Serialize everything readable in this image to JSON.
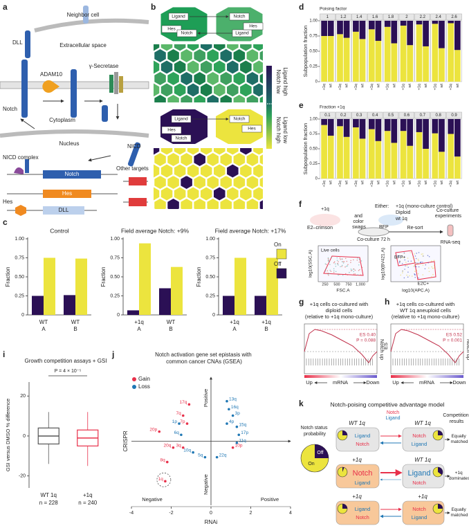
{
  "panel_labels": [
    "a",
    "b",
    "c",
    "d",
    "e",
    "f",
    "g",
    "h",
    "i",
    "j",
    "k"
  ],
  "a": {
    "labels": [
      "Neighbor cell",
      "DLL",
      "Extracellular space",
      "ADAM10",
      "γ-Secretase",
      "Notch",
      "Cytoplasm",
      "Nucleus",
      "NICD",
      "NICD complex",
      "Notch",
      "Hes",
      "Other targets",
      "Hes",
      "DLL"
    ]
  },
  "b": {
    "top": [
      "Ligand",
      "Notch",
      "Hes",
      "Notch",
      "Ligand",
      "Hes"
    ],
    "bottom": [
      "Ligand",
      "Notch",
      "Hes",
      "Notch",
      "Hes"
    ],
    "colorbar": [
      "Notch low",
      "Ligand high",
      "Notch high",
      "Ligand low"
    ]
  },
  "c": {
    "type": "bar",
    "ylabel": "Fraction",
    "ylim": [
      0,
      1
    ],
    "yticks": [
      0,
      0.25,
      {
        "value": 0.5,
        "label": "0.50"
      },
      0.75,
      {
        "value": 1,
        "label": "1.00"
      }
    ],
    "series": [
      {
        "name": "On",
        "color": "#ece43e"
      },
      {
        "name": "Off",
        "color": "#2b1055"
      }
    ],
    "charts": [
      {
        "title": "Control",
        "categories": [
          "WT",
          "WT"
        ],
        "sublabels": [
          "A",
          "B"
        ],
        "values": [
          [
            0.75,
            0.74
          ],
          [
            0.25,
            0.26
          ]
        ]
      },
      {
        "title": "Field average Notch: +9%",
        "categories": [
          "+1q",
          "WT"
        ],
        "sublabels": [
          "A",
          "B"
        ],
        "values": [
          [
            0.94,
            0.63
          ],
          [
            0.06,
            0.35
          ]
        ]
      },
      {
        "title": "Field average Notch: +17%",
        "categories": [
          "+1q",
          "+1q"
        ],
        "sublabels": [
          "A",
          "B"
        ],
        "values": [
          [
            0.75,
            0.75
          ],
          [
            0.25,
            0.25
          ]
        ]
      }
    ]
  },
  "d": {
    "type": "stacked_bar",
    "ylabel": "Subpopulation fraction",
    "facet_title": "Poising factor",
    "facets": [
      1,
      1.2,
      1.4,
      1.6,
      1.8,
      2,
      2.2,
      2.4,
      2.6
    ],
    "categories": [
      "+1q",
      "wt"
    ],
    "colors": [
      "#ece43e",
      "#2b1055"
    ],
    "ylim": [
      0,
      1
    ],
    "yticks": [
      0,
      0.25,
      {
        "value": 0.5,
        "label": "0.50"
      },
      0.75,
      {
        "value": 1,
        "label": "1.00"
      }
    ],
    "lower": [
      [
        0.75,
        0.75
      ],
      [
        0.78,
        0.72
      ],
      [
        0.82,
        0.7
      ],
      [
        0.86,
        0.67
      ],
      [
        0.9,
        0.63
      ],
      [
        0.92,
        0.6
      ],
      [
        0.94,
        0.58
      ],
      [
        0.95,
        0.55
      ],
      [
        0.96,
        0.52
      ]
    ],
    "upper": [
      [
        0.25,
        0.25
      ],
      [
        0.22,
        0.28
      ],
      [
        0.18,
        0.3
      ],
      [
        0.14,
        0.33
      ],
      [
        0.1,
        0.37
      ],
      [
        0.08,
        0.4
      ],
      [
        0.06,
        0.42
      ],
      [
        0.05,
        0.45
      ],
      [
        0.04,
        0.48
      ]
    ]
  },
  "e": {
    "type": "stacked_bar",
    "ylabel": "Subpopulation fraction",
    "facet_title": "Fraction +1q",
    "facets": [
      0.1,
      0.2,
      0.3,
      0.4,
      0.5,
      0.6,
      0.7,
      0.8,
      0.9
    ],
    "categories": [
      "+1q",
      "wt"
    ],
    "colors": [
      "#ece43e",
      "#2b1055"
    ],
    "ylim": [
      0,
      1
    ],
    "yticks": [
      0,
      0.25,
      {
        "value": 0.5,
        "label": "0.50"
      },
      0.75,
      {
        "value": 1,
        "label": "1.00"
      }
    ],
    "lower": [
      [
        0.9,
        0.72
      ],
      [
        0.88,
        0.7
      ],
      [
        0.86,
        0.67
      ],
      [
        0.83,
        0.63
      ],
      [
        0.8,
        0.6
      ],
      [
        0.8,
        0.55
      ],
      [
        0.78,
        0.5
      ],
      [
        0.76,
        0.45
      ],
      [
        0.75,
        0.37
      ]
    ],
    "upper": [
      [
        0.1,
        0.28
      ],
      [
        0.12,
        0.3
      ],
      [
        0.14,
        0.33
      ],
      [
        0.17,
        0.37
      ],
      [
        0.2,
        0.4
      ],
      [
        0.2,
        0.45
      ],
      [
        0.22,
        0.5
      ],
      [
        0.24,
        0.55
      ],
      [
        0.25,
        0.63
      ]
    ]
  },
  "f": {
    "labels": [
      "+1q",
      "E2–crimson",
      "and color swaps",
      "Either:",
      "+1q (mono-culture control)",
      "Diploid",
      "wt 1q",
      "Co-culture experiments",
      "BFP",
      "Co-culture 72 h",
      "Re-sort",
      "RNA-seq",
      "Live cells",
      "log10(SSC.A)",
      "FSC.A",
      "BFP+",
      "E2C+",
      "log10(BV421.A)",
      "log10(APC.A)"
    ],
    "fsc_ticks": [
      "250",
      "500",
      "750",
      "1,000"
    ]
  },
  "g": {
    "title": [
      "+1q cells co-cultured with",
      "diploid cells",
      "(relative to +1q mono-culture)"
    ],
    "side": "Notch up",
    "axis": [
      "Up",
      "mRNA",
      "Down"
    ],
    "stats": [
      "ES 0.40",
      "P = 0.088"
    ]
  },
  "h": {
    "title": [
      "+1q cells co-cultured with",
      "WT 1q aneuploid cells",
      "(relative to +1q mono-culture)"
    ],
    "ylabel": "ES",
    "side": "Notch up",
    "axis": [
      "Up",
      "mRNA",
      "Down"
    ],
    "stats": [
      "ES 0.52",
      "P = 0.001"
    ]
  },
  "i": {
    "type": "box",
    "title": "Growth competition assays + GSI",
    "annotation": "P = 4 × 10⁻⁵",
    "ylabel": "GSI versus DMSO % difference",
    "ylim": [
      -26,
      27
    ],
    "yticks": [
      -20,
      0,
      20
    ],
    "categories": [
      "WT 1q",
      "+1q"
    ],
    "sublabels": [
      "n = 228",
      "n = 240"
    ],
    "colors": [
      "#555555",
      "#e8304a"
    ],
    "boxes": [
      {
        "min": -14,
        "q1": -4,
        "median": 0,
        "q3": 4,
        "max": 12
      },
      {
        "min": -15,
        "q1": -5,
        "median": -1,
        "q3": 3,
        "max": 12
      }
    ]
  },
  "j": {
    "type": "scatter",
    "title": "Notch activation gene set epistasis with common cancer CNAs (GSEA)",
    "xlabel": "RNAi",
    "ylabel": "CRISPR",
    "x_ends": [
      "Negative",
      "Positive"
    ],
    "y_ends": [
      "Negative",
      "Positive"
    ],
    "xlim": [
      -4,
      4
    ],
    "ylim": [
      -4,
      4
    ],
    "xticks": [
      -4,
      -2,
      0,
      2,
      4
    ],
    "series": [
      {
        "name": "Gain",
        "color": "#e8304a",
        "labels": [
          "17q",
          "7q",
          "7p",
          "20p",
          "20q",
          "3q",
          "8q",
          "1q",
          "10p"
        ],
        "x": [
          -1.1,
          -1.4,
          -1.2,
          -2.6,
          -1.9,
          -1.4,
          -2.2,
          -2.3,
          1.1
        ],
        "y": [
          2.3,
          1.6,
          1.1,
          0.6,
          -0.4,
          -0.4,
          -1.3,
          -2.5,
          -0.4
        ]
      },
      {
        "name": "Loss",
        "color": "#1f77b4",
        "labels": [
          "13q",
          "16q",
          "3p",
          "4p",
          "15q",
          "17p",
          "11q",
          "22q",
          "5q",
          "10q",
          "1p",
          "6q"
        ],
        "x": [
          0.8,
          0.9,
          1.1,
          0.8,
          1.3,
          1.4,
          1.3,
          0.3,
          -0.3,
          -0.9,
          -1.6,
          -1.5
        ],
        "y": [
          2.5,
          2.0,
          1.6,
          1.1,
          0.9,
          0.4,
          -0.1,
          -1.0,
          -1.0,
          -0.7,
          1.1,
          0.4
        ]
      }
    ]
  },
  "k": {
    "title": "Notch-poising competitive advantage model",
    "pie_label": "Notch status probability",
    "pie": [
      "Off",
      "On"
    ],
    "results_title": "Competition results",
    "legend": [
      "Notch",
      "Ligand"
    ],
    "rows": [
      {
        "left": "WT 1q",
        "right": "WT 1q",
        "left_box": [
          "Ligand",
          "Notch"
        ],
        "right_box": [
          "Notch",
          "Ligand"
        ],
        "result": "Equally matched"
      },
      {
        "left": "+1q",
        "right": "WT 1q",
        "left_box": [
          "Notch",
          "Ligand"
        ],
        "right_box": [
          "Ligand",
          "Notch"
        ],
        "result": "+1q dominates"
      },
      {
        "left": "+1q",
        "right": "+1q",
        "left_box": [
          "Ligand",
          "Notch"
        ],
        "right_box": [
          "Notch",
          "Ligand"
        ],
        "result": "Equally matched"
      }
    ]
  }
}
